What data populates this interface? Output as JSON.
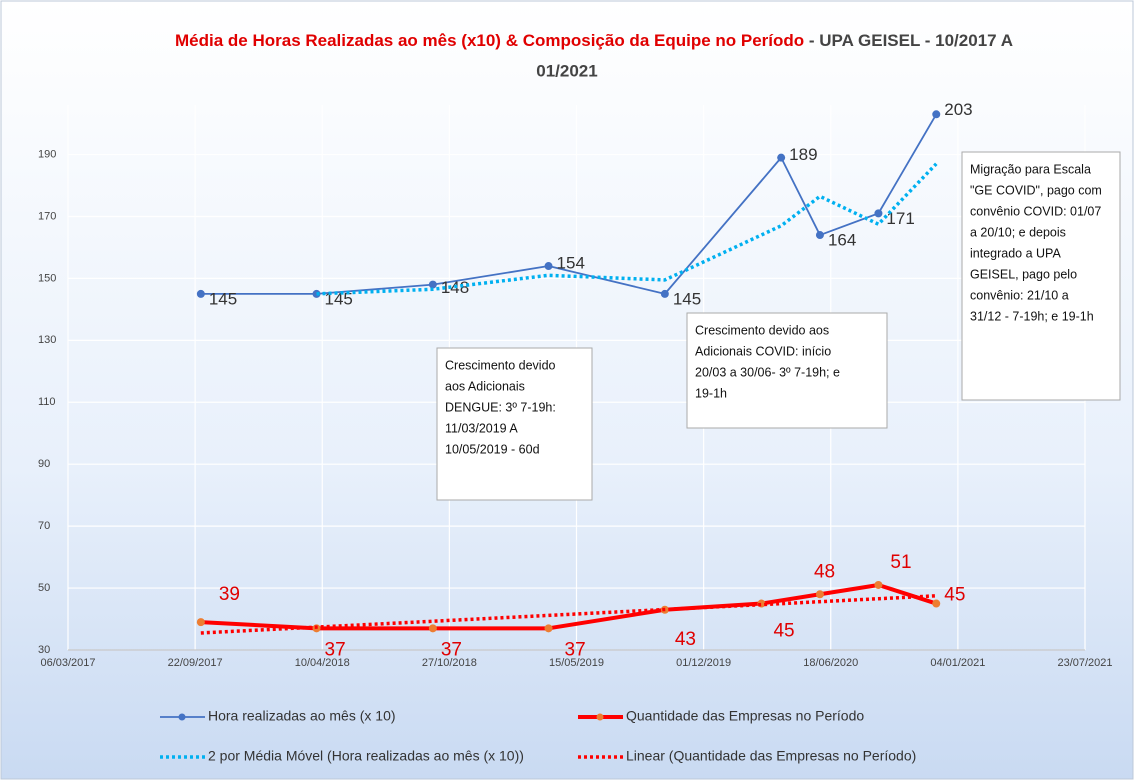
{
  "chart_data": {
    "type": "line",
    "title": "Média de Horas Realizadas ao mês (x10)  &  Composição da Equipe no Período",
    "subtitle": " - UPA GEISEL - 10/2017 A",
    "subtitle_line2": "01/2021",
    "xlim": [
      "06/03/2017",
      "23/07/2021"
    ],
    "xticks": [
      "06/03/2017",
      "22/09/2017",
      "10/04/2018",
      "27/10/2018",
      "15/05/2019",
      "01/12/2019",
      "18/06/2020",
      "04/01/2021",
      "23/07/2021"
    ],
    "ylim": [
      30,
      206
    ],
    "yticks": [
      30,
      50,
      70,
      90,
      110,
      130,
      150,
      170,
      190
    ],
    "grid": true,
    "legend": "bottom",
    "series": [
      {
        "name": "Hora realizadas ao mês (x 10)",
        "color": "#4472c4",
        "style": "solid",
        "x": [
          "01/10/2017",
          "01/04/2018",
          "01/10/2018",
          "01/04/2019",
          "01/10/2019",
          "01/04/2020",
          "01/06/2020",
          "01/09/2020",
          "01/12/2020"
        ],
        "values": [
          145,
          145,
          148,
          154,
          145,
          189,
          164,
          171,
          203
        ]
      },
      {
        "name": "Quantidade das Empresas no Período",
        "color": "#ff0000",
        "style": "thick",
        "x": [
          "01/10/2017",
          "01/04/2018",
          "01/10/2018",
          "01/04/2019",
          "01/10/2019",
          "01/03/2020",
          "01/06/2020",
          "01/09/2020",
          "01/12/2020"
        ],
        "values": [
          39,
          37,
          37,
          37,
          43,
          45,
          48,
          51,
          45
        ]
      },
      {
        "name": "2 por Média Móvel (Hora realizadas ao mês (x 10))",
        "color": "#00b0f0",
        "style": "dotted",
        "x": [
          "01/10/2017",
          "01/04/2018",
          "01/10/2018",
          "01/04/2019",
          "01/10/2019",
          "01/04/2020",
          "01/06/2020",
          "01/09/2020",
          "01/12/2020"
        ],
        "values": [
          null,
          145,
          146.5,
          151,
          149.5,
          167,
          176.5,
          167.5,
          187
        ]
      },
      {
        "name": "Linear (Quantidade das Empresas no Período)",
        "color": "#ff0000",
        "style": "dotted",
        "x": [
          "01/10/2017",
          "01/12/2020"
        ],
        "values": [
          35.5,
          47.5
        ]
      }
    ],
    "annotations": [
      {
        "lines": [
          "Crescimento devido",
          "aos Adicionais",
          "DENGUE: 3º 7-19h:",
          "11/03/2019 A",
          "10/05/2019 - 60d"
        ]
      },
      {
        "lines": [
          "Crescimento devido aos",
          "Adicionais COVID: início",
          "20/03 a 30/06- 3º 7-19h; e",
          "19-1h"
        ]
      },
      {
        "lines": [
          "Migração para Escala",
          "\"GE COVID\", pago com",
          "convênio COVID: 01/07",
          "a 20/10; e depois",
          "integrado a UPA",
          "GEISEL, pago pelo",
          "convênio: 21/10 a",
          "31/12 - 7-19h; e 19-1h"
        ]
      }
    ]
  }
}
